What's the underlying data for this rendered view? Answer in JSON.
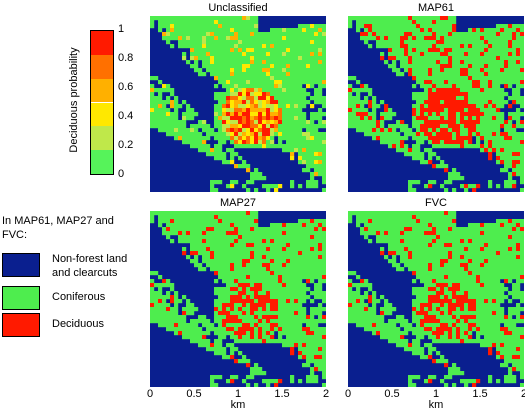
{
  "panels": [
    {
      "id": "unclassified",
      "title": "Unclassified"
    },
    {
      "id": "map61",
      "title": "MAP61"
    },
    {
      "id": "map27",
      "title": "MAP27"
    },
    {
      "id": "fvc",
      "title": "FVC"
    }
  ],
  "colorbar": {
    "ylabel": "Deciduous probability",
    "ticks": [
      "0",
      "0.2",
      "0.4",
      "0.6",
      "0.8",
      "1"
    ],
    "colors": [
      "#56f35a",
      "#bfe84a",
      "#ffe800",
      "#ffb000",
      "#ff7000",
      "#ff1a00"
    ]
  },
  "legend": {
    "heading": "In MAP61, MAP27 and FVC:",
    "items": [
      {
        "label": "Non-forest land and clearcuts",
        "color": "#0a1f8f"
      },
      {
        "label": "Coniferous",
        "color": "#4eed4e"
      },
      {
        "label": "Deciduous",
        "color": "#ff1a00"
      }
    ]
  },
  "x_axis": {
    "ticks": [
      "0",
      "0.5",
      "1",
      "1.5",
      "2"
    ],
    "label": "km"
  },
  "colors": {
    "water": "#0a1f8f",
    "coniferous": "#4eed4e",
    "deciduous": "#ff1a00"
  }
}
